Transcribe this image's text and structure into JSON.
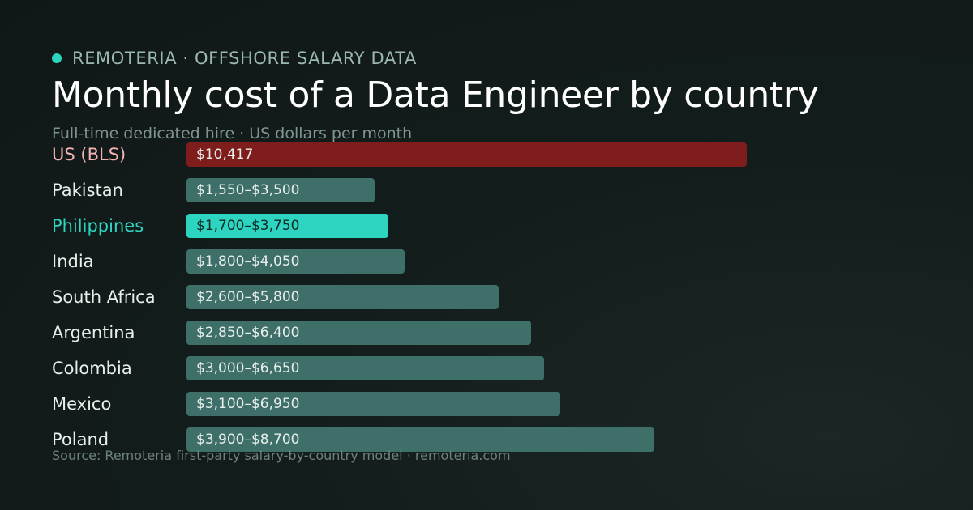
{
  "brand": {
    "name": "REMOTERIA · OFFSHORE SALARY DATA"
  },
  "header": {
    "title": "Monthly cost of a Data Engineer by country",
    "subtitle": "Full-time dedicated hire · US dollars per month"
  },
  "footer": {
    "source": "Source: Remoteria first-party salary-by-country model · remoteria.com"
  },
  "colors": {
    "accent": "#2dd4bf",
    "benchmark": "#7f1d1d",
    "bar": "#3f6f69"
  },
  "chart_data": {
    "type": "bar",
    "orientation": "horizontal",
    "xlim": [
      0,
      11000
    ],
    "grid": false,
    "categories": [
      "US (BLS)",
      "Pakistan",
      "Philippines",
      "India",
      "South Africa",
      "Argentina",
      "Colombia",
      "Mexico",
      "Poland"
    ],
    "values": [
      10417,
      3500,
      3750,
      4050,
      5800,
      6400,
      6650,
      6950,
      8700
    ],
    "ranges": [
      [
        10417,
        10417
      ],
      [
        1550,
        3500
      ],
      [
        1700,
        3750
      ],
      [
        1800,
        4050
      ],
      [
        2600,
        5800
      ],
      [
        2850,
        6400
      ],
      [
        3000,
        6650
      ],
      [
        3100,
        6950
      ],
      [
        3900,
        8700
      ]
    ],
    "value_labels": [
      "$10,417",
      "$1,550–$3,500",
      "$1,700–$3,750",
      "$1,800–$4,050",
      "$2,600–$5,800",
      "$2,850–$6,400",
      "$3,000–$6,650",
      "$3,100–$6,950",
      "$3,900–$8,700"
    ],
    "styles": [
      "benchmark",
      "normal",
      "highlight",
      "normal",
      "normal",
      "normal",
      "normal",
      "normal",
      "normal"
    ]
  }
}
